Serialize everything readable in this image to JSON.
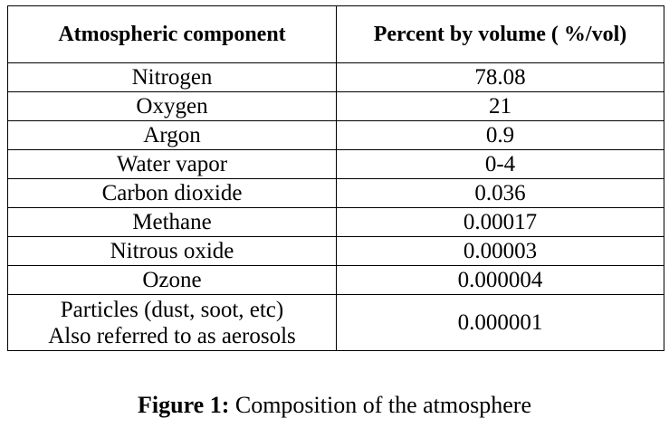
{
  "table": {
    "headers": [
      "Atmospheric component",
      "Percent by volume ( %/vol)"
    ],
    "rows": [
      {
        "component": "Nitrogen",
        "percent": "78.08"
      },
      {
        "component": "Oxygen",
        "percent": "21"
      },
      {
        "component": "Argon",
        "percent": "0.9"
      },
      {
        "component": "Water vapor",
        "percent": "0-4"
      },
      {
        "component": "Carbon dioxide",
        "percent": "0.036"
      },
      {
        "component": "Methane",
        "percent": "0.00017"
      },
      {
        "component": "Nitrous oxide",
        "percent": "0.00003"
      },
      {
        "component": "Ozone",
        "percent": "0.000004"
      },
      {
        "component_lines": [
          "Particles (dust, soot, etc)",
          "Also referred to as aerosols"
        ],
        "percent": "0.000001"
      }
    ]
  },
  "caption": {
    "label": "Figure 1:",
    "text": " Composition of the atmosphere"
  }
}
